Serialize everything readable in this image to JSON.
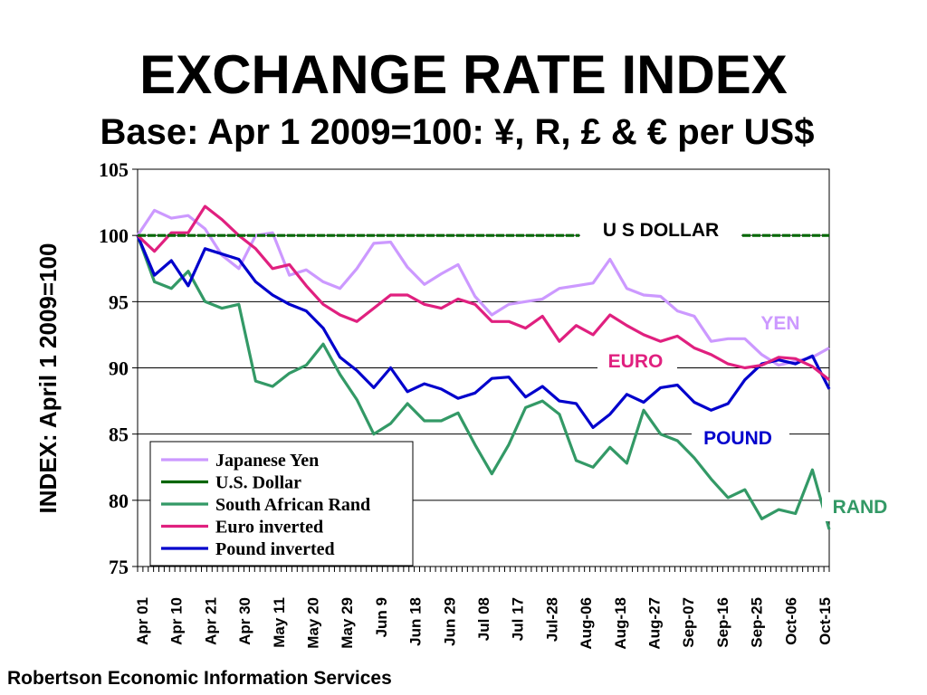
{
  "title": "EXCHANGE RATE INDEX",
  "subtitle": "Base: Apr 1 2009=100: ¥, R, £ & € per US$",
  "footer": "Robertson Economic Information Services",
  "chart_data": {
    "type": "line",
    "ylabel": "INDEX: April 1 2009=100",
    "ylim": [
      75,
      105
    ],
    "yticks": [
      75,
      80,
      85,
      90,
      95,
      100,
      105
    ],
    "grid": "horizontal",
    "legend_position": "bottom-left",
    "x_tick_labels": [
      "Apr 01",
      "Apr 10",
      "Apr 21",
      "Apr 30",
      "May 11",
      "May 20",
      "May 29",
      "Jun 9",
      "Jun 18",
      "Jun 29",
      "Jul 08",
      "Jul 17",
      "Jul-28",
      "Aug-06",
      "Aug-18",
      "Aug-27",
      "Sep-07",
      "Sep-16",
      "Sep-25",
      "Oct-06",
      "Oct-15"
    ],
    "series": [
      {
        "name": "Japanese Yen",
        "color": "#CC99FF",
        "label": "YEN",
        "values": [
          100,
          101.9,
          101.3,
          101.5,
          100.5,
          98.5,
          97.5,
          100,
          100.2,
          97,
          97.4,
          96.5,
          96,
          97.5,
          99.4,
          99.5,
          97.6,
          96.3,
          97.1,
          97.8,
          95.4,
          94,
          94.8,
          95,
          95.2,
          96,
          96.2,
          96.4,
          98.2,
          96,
          95.5,
          95.4,
          94.3,
          93.9,
          92,
          92.2,
          92.2,
          91,
          90.2,
          90.5,
          90.8,
          91.5
        ]
      },
      {
        "name": "U.S. Dollar",
        "color": "#006600",
        "label": "U S DOLLAR",
        "values": [
          100,
          100,
          100,
          100,
          100,
          100,
          100,
          100,
          100,
          100,
          100,
          100,
          100,
          100,
          100,
          100,
          100,
          100,
          100,
          100,
          100,
          100,
          100,
          100,
          100,
          100,
          100,
          100,
          100,
          100,
          100,
          100,
          100,
          100,
          100,
          100,
          100,
          100,
          100,
          100,
          100,
          100
        ]
      },
      {
        "name": "South African Rand",
        "color": "#339966",
        "label": "RAND",
        "values": [
          100,
          96.5,
          96,
          97.3,
          95,
          94.5,
          94.8,
          89,
          88.6,
          89.6,
          90.2,
          91.8,
          89.5,
          87.6,
          85,
          85.8,
          87.3,
          86,
          86,
          86.6,
          84.2,
          82,
          84.2,
          87,
          87.5,
          86.5,
          83,
          82.5,
          84,
          82.8,
          86.8,
          85,
          84.5,
          83.2,
          81.6,
          80.2,
          80.8,
          78.6,
          79.3,
          79,
          82.3,
          77.8
        ]
      },
      {
        "name": "Euro inverted",
        "color": "#E0207F",
        "label": "EURO",
        "values": [
          100,
          98.8,
          100.2,
          100.2,
          102.2,
          101.2,
          100,
          99,
          97.5,
          97.8,
          96.2,
          94.8,
          94,
          93.5,
          94.5,
          95.5,
          95.5,
          94.8,
          94.5,
          95.2,
          94.8,
          93.5,
          93.5,
          93,
          93.9,
          92,
          93.2,
          92.5,
          94,
          93.2,
          92.5,
          92,
          92.4,
          91.5,
          91,
          90.3,
          90,
          90.2,
          90.8,
          90.7,
          90.1,
          89.1
        ]
      },
      {
        "name": "Pound inverted",
        "color": "#0000CC",
        "label": "POUND",
        "values": [
          100,
          97,
          98.1,
          96.2,
          99,
          98.6,
          98.2,
          96.5,
          95.5,
          94.8,
          94.3,
          93,
          90.8,
          89.8,
          88.5,
          90,
          88.2,
          88.8,
          88.4,
          87.7,
          88.1,
          89.2,
          89.3,
          87.8,
          88.6,
          87.5,
          87.3,
          85.5,
          86.5,
          88,
          87.4,
          88.5,
          88.7,
          87.4,
          86.8,
          87.3,
          89.1,
          90.3,
          90.6,
          90.3,
          90.9,
          88.4
        ]
      }
    ],
    "legend": [
      "Japanese Yen",
      "U.S. Dollar",
      "South African Rand",
      "Euro inverted",
      "Pound inverted"
    ]
  }
}
